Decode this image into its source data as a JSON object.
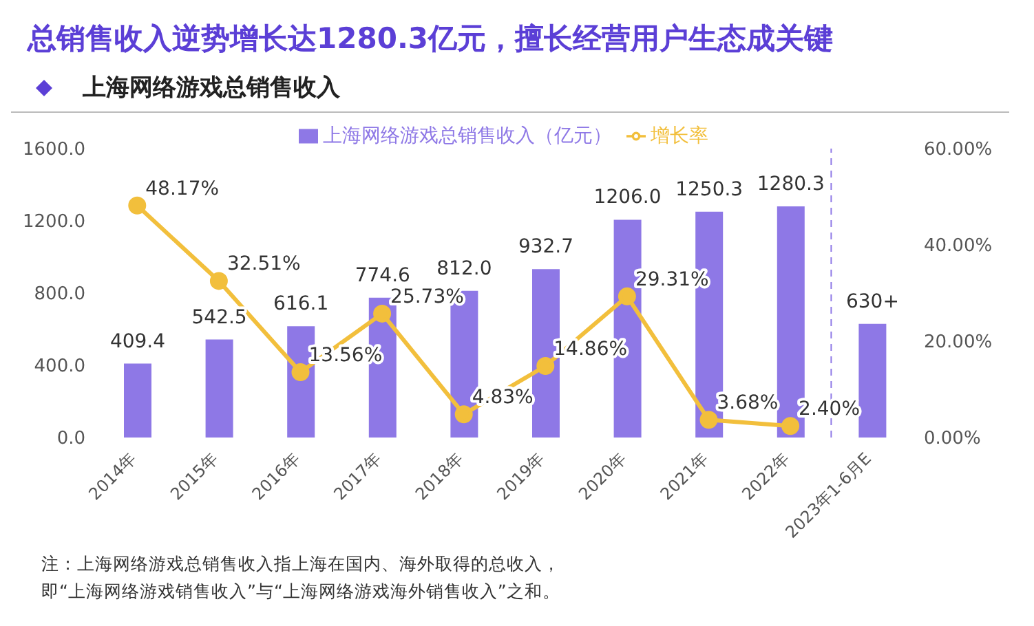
{
  "chart_data": {
    "type": "bar",
    "title": "总销售收入逆势增长达1280.3亿元，擅长经营用户生态成关键",
    "subtitle": "上海网络游戏总销售收入",
    "categories": [
      "2014年",
      "2015年",
      "2016年",
      "2017年",
      "2018年",
      "2019年",
      "2020年",
      "2021年",
      "2022年",
      "2023年1-6月E"
    ],
    "series": [
      {
        "name": "上海网络游戏总销售收入（亿元）",
        "color": "#8e78e6",
        "values": [
          409.4,
          542.5,
          616.1,
          774.6,
          812.0,
          932.7,
          1206.0,
          1250.3,
          1280.3,
          630
        ],
        "value_labels": [
          "409.4",
          "542.5",
          "616.1",
          "774.6",
          "812.0",
          "932.7",
          "1206.0",
          "1250.3",
          "1280.3",
          "630+"
        ]
      },
      {
        "name": "增长率",
        "type": "line",
        "axis": "y2",
        "color": "#f2bf3c",
        "marker": "circle",
        "values": [
          48.17,
          32.51,
          13.56,
          25.73,
          4.83,
          14.86,
          29.31,
          3.68,
          2.4,
          null
        ],
        "value_labels": [
          "48.17%",
          "32.51%",
          "13.56%",
          "25.73%",
          "4.83%",
          "14.86%",
          "29.31%",
          "3.68%",
          "2.40%",
          null
        ]
      }
    ],
    "ylim": [
      0,
      1600
    ],
    "yticks": [
      {
        "value": 0,
        "label": "0.0"
      },
      {
        "value": 400,
        "label": "400.0"
      },
      {
        "value": 800,
        "label": "800.0"
      },
      {
        "value": 1200,
        "label": "1200.0"
      },
      {
        "value": 1600,
        "label": "1600.0"
      }
    ],
    "y2lim": [
      0,
      60
    ],
    "y2ticks": [
      {
        "value": 0,
        "label": "0.00%"
      },
      {
        "value": 20,
        "label": "20.00%"
      },
      {
        "value": 40,
        "label": "40.00%"
      },
      {
        "value": 60,
        "label": "60.00%"
      }
    ],
    "ref_lines": [
      {
        "axis": "x",
        "value": "2023年1-6月E",
        "color": "#8e78e6",
        "line_style": "dashed"
      }
    ],
    "grid": false,
    "legend": "top",
    "annotations": [
      "注：上海网络游戏总销售收入指上海在国内、海外取得的总收入，",
      "即“上海网络游戏销售收入”与“上海网络游戏海外销售收入”之和。"
    ]
  }
}
